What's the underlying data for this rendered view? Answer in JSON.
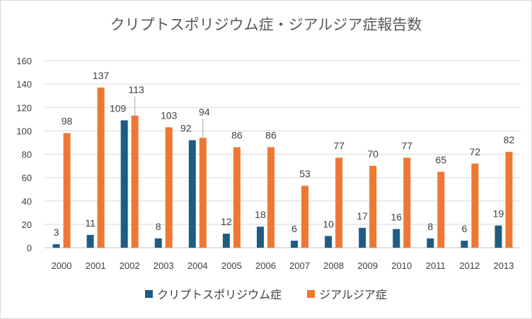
{
  "chart_data": {
    "type": "bar",
    "title": "クリプトスポリジウム症・ジアルジア症報告数",
    "categories": [
      "2000",
      "2001",
      "2002",
      "2003",
      "2004",
      "2005",
      "2006",
      "2007",
      "2008",
      "2009",
      "2010",
      "2011",
      "2012",
      "2013"
    ],
    "series": [
      {
        "name": "クリプトスポリジウム症",
        "color": "#1f5c82",
        "values": [
          3,
          11,
          109,
          8,
          92,
          12,
          18,
          6,
          10,
          17,
          16,
          8,
          6,
          19
        ]
      },
      {
        "name": "ジアルジア症",
        "color": "#ee7733",
        "values": [
          98,
          137,
          113,
          103,
          94,
          86,
          86,
          53,
          77,
          70,
          77,
          65,
          72,
          82
        ]
      }
    ],
    "ylim": [
      0,
      160
    ],
    "yticks": [
      0,
      20,
      40,
      60,
      80,
      100,
      120,
      140,
      160
    ],
    "grid": true,
    "legend_position": "bottom",
    "xlabel": "",
    "ylabel": ""
  }
}
